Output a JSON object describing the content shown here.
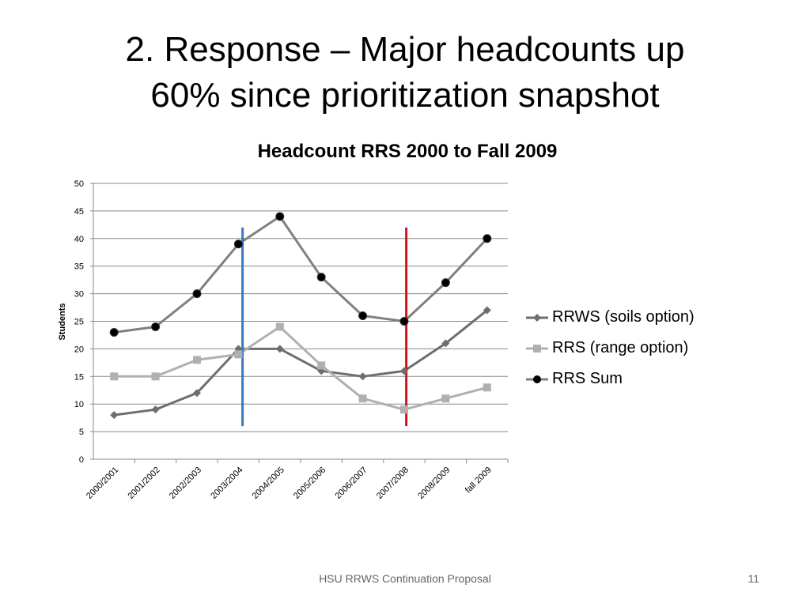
{
  "slide": {
    "title_line1": "2. Response  – Major headcounts up",
    "title_line2": "60% since prioritization snapshot",
    "footer": "HSU RRWS Continuation Proposal",
    "page_number": "11"
  },
  "chart_data": {
    "type": "line",
    "title": "Headcount RRS 2000 to Fall 2009",
    "xlabel": "",
    "ylabel": "Students",
    "ylim": [
      0,
      50
    ],
    "yticks": [
      0,
      5,
      10,
      15,
      20,
      25,
      30,
      35,
      40,
      45,
      50
    ],
    "grid": true,
    "legend_position": "right",
    "categories": [
      "2000/2001",
      "2001/2002",
      "2002/2003",
      "2003/2004",
      "2004/2005",
      "2005/2006",
      "2006/2007",
      "2007/2008",
      "2008/2009",
      "fall 2009"
    ],
    "series": [
      {
        "name": "RRWS (soils option)",
        "values": [
          8,
          9,
          12,
          20,
          20,
          16,
          15,
          16,
          21,
          27
        ],
        "color": "#6e6e6e",
        "marker": "diamond"
      },
      {
        "name": "RRS (range option)",
        "values": [
          15,
          15,
          18,
          19,
          24,
          17,
          11,
          9,
          11,
          13
        ],
        "color": "#b0b0b0",
        "marker": "square"
      },
      {
        "name": "RRS Sum",
        "values": [
          23,
          24,
          30,
          39,
          44,
          33,
          26,
          25,
          32,
          40
        ],
        "color": "#808080",
        "marker": "circle"
      }
    ],
    "annotations": [
      {
        "type": "vertical-line",
        "between": [
          "2003/2004",
          "2004/2005"
        ],
        "position": 0.1,
        "y_range": [
          6,
          42
        ],
        "color": "#3a78c0"
      },
      {
        "type": "vertical-line",
        "between": [
          "2007/2008",
          "2008/2009"
        ],
        "position": 0.05,
        "y_range": [
          6,
          42
        ],
        "color": "#d0141a"
      }
    ]
  }
}
